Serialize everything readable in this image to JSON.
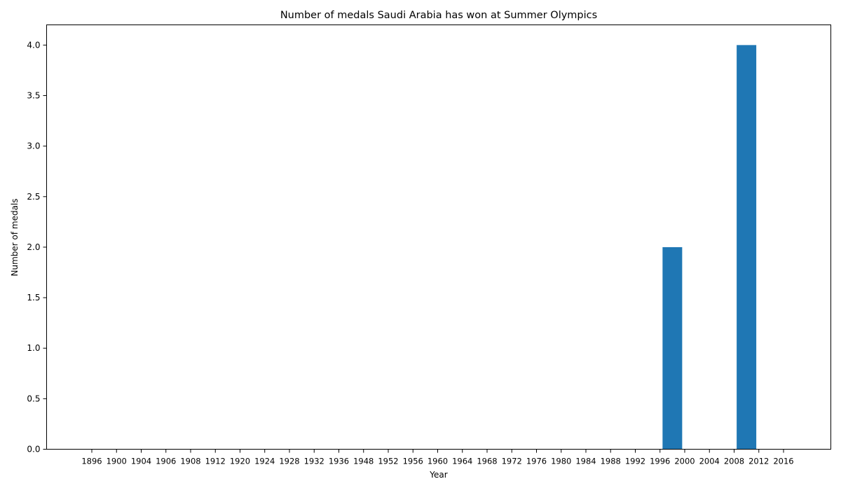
{
  "chart_data": {
    "type": "bar",
    "title": "Number of medals Saudi Arabia has won at Summer Olympics",
    "xlabel": "Year",
    "ylabel": "Number of medals",
    "categories": [
      "1896",
      "1900",
      "1904",
      "1906",
      "1908",
      "1912",
      "1920",
      "1924",
      "1928",
      "1932",
      "1936",
      "1948",
      "1952",
      "1956",
      "1960",
      "1964",
      "1968",
      "1972",
      "1976",
      "1980",
      "1984",
      "1988",
      "1992",
      "1996",
      "2000",
      "2004",
      "2008",
      "2012",
      "2016"
    ],
    "bars": [
      {
        "position": 23.5,
        "value": 2
      },
      {
        "position": 26.5,
        "value": 4
      }
    ],
    "ylim": [
      0,
      4.2
    ],
    "yticks": [
      0.0,
      0.5,
      1.0,
      1.5,
      2.0,
      2.5,
      3.0,
      3.5,
      4.0
    ],
    "ytick_labels": [
      "0.0",
      "0.5",
      "1.0",
      "1.5",
      "2.0",
      "2.5",
      "3.0",
      "3.5",
      "4.0"
    ],
    "bar_color": "#1f77b4",
    "grid": false,
    "legend": "none"
  }
}
